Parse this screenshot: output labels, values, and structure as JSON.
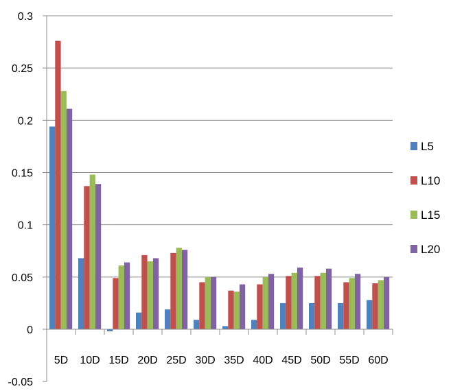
{
  "chart_data": {
    "type": "bar",
    "categories": [
      "5D",
      "10D",
      "15D",
      "20D",
      "25D",
      "30D",
      "35D",
      "40D",
      "45D",
      "50D",
      "55D",
      "60D"
    ],
    "series": [
      {
        "name": "L5",
        "color": "#4F81BD",
        "values": [
          0.194,
          0.068,
          -0.002,
          0.016,
          0.019,
          0.009,
          0.003,
          0.009,
          0.025,
          0.025,
          0.025,
          0.028
        ]
      },
      {
        "name": "L10",
        "color": "#C0504D",
        "values": [
          0.276,
          0.137,
          0.049,
          0.071,
          0.073,
          0.045,
          0.037,
          0.043,
          0.051,
          0.051,
          0.045,
          0.044
        ]
      },
      {
        "name": "L15",
        "color": "#9BBB59",
        "values": [
          0.228,
          0.148,
          0.061,
          0.065,
          0.078,
          0.05,
          0.036,
          0.05,
          0.054,
          0.054,
          0.049,
          0.047
        ]
      },
      {
        "name": "L20",
        "color": "#8064A2",
        "values": [
          0.211,
          0.139,
          0.064,
          0.068,
          0.076,
          0.05,
          0.043,
          0.053,
          0.059,
          0.058,
          0.053,
          0.05
        ]
      }
    ],
    "y_ticks": [
      "0.3",
      "0.25",
      "0.2",
      "0.15",
      "0.1",
      "0.05",
      "0",
      "-0.05"
    ],
    "ylim": [
      -0.05,
      0.3
    ],
    "grid": true,
    "legend": "right",
    "title": "",
    "xlabel": "",
    "ylabel": ""
  }
}
